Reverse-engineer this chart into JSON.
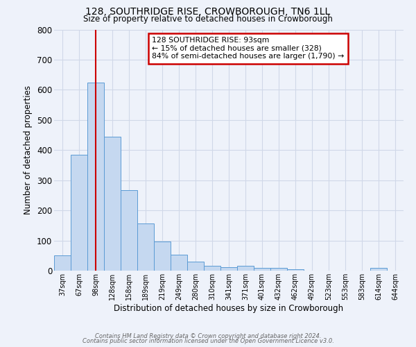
{
  "title": "128, SOUTHRIDGE RISE, CROWBOROUGH, TN6 1LL",
  "subtitle": "Size of property relative to detached houses in Crowborough",
  "xlabel": "Distribution of detached houses by size in Crowborough",
  "ylabel": "Number of detached properties",
  "bar_labels": [
    "37sqm",
    "67sqm",
    "98sqm",
    "128sqm",
    "158sqm",
    "189sqm",
    "219sqm",
    "249sqm",
    "280sqm",
    "310sqm",
    "341sqm",
    "371sqm",
    "401sqm",
    "432sqm",
    "462sqm",
    "492sqm",
    "523sqm",
    "553sqm",
    "583sqm",
    "614sqm",
    "644sqm"
  ],
  "bar_heights": [
    50,
    385,
    625,
    445,
    268,
    157,
    97,
    52,
    30,
    16,
    11,
    15,
    10,
    10,
    5,
    0,
    0,
    0,
    0,
    10,
    0
  ],
  "bar_color": "#c5d8f0",
  "bar_edge_color": "#5b9bd5",
  "vline_x_index": 2,
  "vline_color": "#cc0000",
  "ylim": [
    0,
    800
  ],
  "yticks": [
    0,
    100,
    200,
    300,
    400,
    500,
    600,
    700,
    800
  ],
  "annotation_title": "128 SOUTHRIDGE RISE: 93sqm",
  "annotation_line1": "← 15% of detached houses are smaller (328)",
  "annotation_line2": "84% of semi-detached houses are larger (1,790) →",
  "annotation_box_color": "#cc0000",
  "grid_color": "#d0d8e8",
  "footer_line1": "Contains HM Land Registry data © Crown copyright and database right 2024.",
  "footer_line2": "Contains public sector information licensed under the Open Government Licence v3.0.",
  "background_color": "#eef2fa"
}
